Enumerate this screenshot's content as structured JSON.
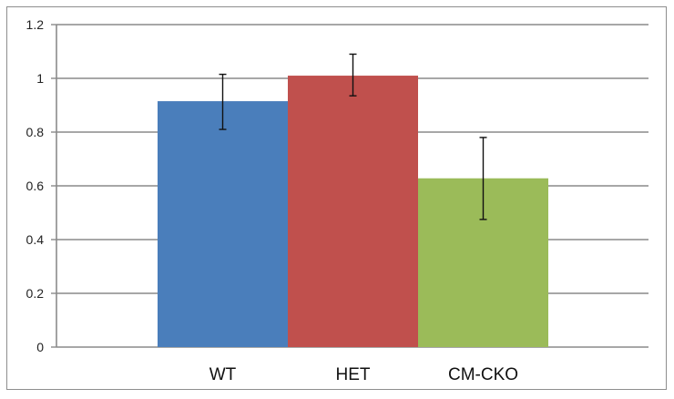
{
  "chart_data": {
    "type": "bar",
    "title": "",
    "xlabel": "",
    "ylabel": "",
    "ylim": [
      0,
      1.2
    ],
    "yticks": [
      "0",
      "0.2",
      "0.4",
      "0.6",
      "0.8",
      "1",
      "1.2"
    ],
    "grid": true,
    "legend": "none",
    "categories": [
      "WT",
      "HET",
      "CM-CKO"
    ],
    "values": [
      0.915,
      1.01,
      0.628
    ],
    "error_low": [
      0.81,
      0.935,
      0.475
    ],
    "error_high": [
      1.015,
      1.09,
      0.78
    ],
    "colors": [
      "#4a7ebb",
      "#c0504d",
      "#9bbb59"
    ]
  }
}
